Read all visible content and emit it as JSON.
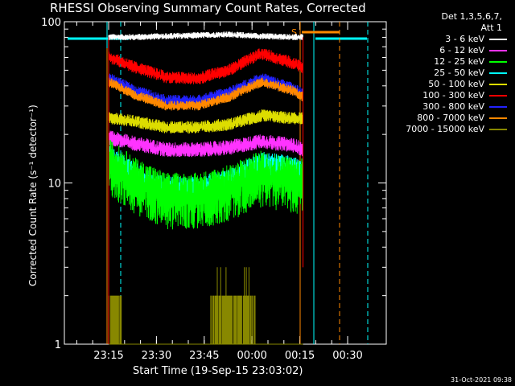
{
  "chart_data": {
    "type": "line",
    "title": "RHESSI Observing Summary Count Rates, Corrected",
    "xlabel": "Start Time (19-Sep-15 23:03:02)",
    "ylabel": "Corrected Count Rate (s⁻¹ detector⁻¹)",
    "yscale": "log",
    "ylim": [
      1,
      100
    ],
    "xlim_minutes": [
      -5,
      43
    ],
    "x_ticks": [
      {
        "minute": 12,
        "label": "23:15"
      },
      {
        "minute": 27,
        "label": "23:30"
      },
      {
        "minute": 42,
        "label": "23:45"
      },
      {
        "minute": 57,
        "label": "00:00"
      },
      {
        "minute": 72,
        "label": "00:15"
      },
      {
        "minute": 87,
        "label": "00:30"
      }
    ],
    "y_ticks": [
      {
        "value": 1,
        "label": "1"
      },
      {
        "value": 10,
        "label": "10"
      },
      {
        "value": 100,
        "label": "100"
      }
    ],
    "legend_header": [
      "Det 1,3,5,6,7,",
      "Att 1"
    ],
    "series": [
      {
        "name": "3 - 6 keV",
        "color": "#ffffff",
        "x": [
          12,
          20,
          30,
          40,
          50,
          60,
          70,
          73
        ],
        "y": [
          80,
          80,
          81,
          82,
          83,
          81,
          80,
          80
        ]
      },
      {
        "name": "6 - 12 keV",
        "color": "#ff33ff",
        "x": [
          12,
          20,
          30,
          40,
          50,
          60,
          70,
          73
        ],
        "y": [
          19,
          17.5,
          16,
          16,
          16.5,
          18,
          17,
          16
        ]
      },
      {
        "name": "12 - 25 keV",
        "color": "#00ff00",
        "x": [
          12,
          20,
          30,
          40,
          50,
          60,
          70,
          73
        ],
        "y": [
          13,
          10,
          8,
          8,
          9,
          11,
          10,
          10
        ]
      },
      {
        "name": "25 - 50 keV",
        "color": "#00ffff",
        "x": [
          12,
          20,
          30,
          40,
          50,
          60,
          70,
          73
        ],
        "y": [
          14,
          11,
          9,
          9,
          10,
          13,
          12,
          11
        ]
      },
      {
        "name": "50 - 100 keV",
        "color": "#dddd00",
        "x": [
          12,
          20,
          30,
          40,
          50,
          60,
          70,
          73
        ],
        "y": [
          25,
          24,
          22,
          22,
          23,
          26,
          25,
          25
        ]
      },
      {
        "name": "100 - 300 keV",
        "color": "#ff0000",
        "x": [
          12,
          20,
          30,
          40,
          50,
          60,
          70,
          73
        ],
        "y": [
          60,
          52,
          45,
          44,
          50,
          63,
          55,
          52
        ]
      },
      {
        "name": "300 - 800 keV",
        "color": "#2222ff",
        "x": [
          12,
          20,
          30,
          40,
          50,
          60,
          70,
          73
        ],
        "y": [
          44,
          37,
          32,
          32,
          36,
          44,
          38,
          35
        ]
      },
      {
        "name": "800 - 7000 keV",
        "color": "#ff8800",
        "x": [
          12,
          20,
          30,
          40,
          50,
          60,
          70,
          73
        ],
        "y": [
          42,
          35,
          30,
          30,
          34,
          42,
          37,
          34
        ]
      },
      {
        "name": "7000 - 15000 keV",
        "color": "#888800",
        "x": [
          12,
          20,
          30,
          40,
          50,
          60,
          70,
          73
        ],
        "y": [
          2,
          1,
          1,
          1,
          2,
          2,
          2,
          1
        ]
      }
    ],
    "annotations": [
      {
        "text": "S",
        "color": "#ff8800",
        "minute": 73
      }
    ],
    "footer_stamp": "31-Oct-2021 09:38"
  }
}
